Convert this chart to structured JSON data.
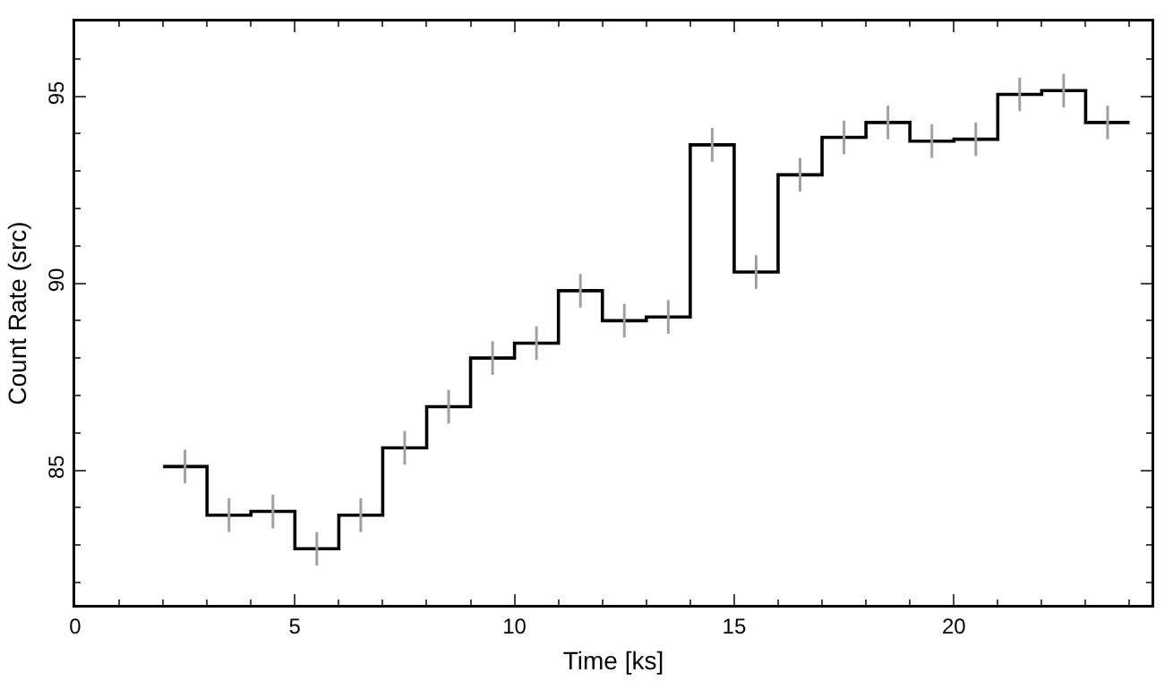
{
  "chart_data": {
    "type": "step",
    "xlabel": "Time [ks]",
    "ylabel": "Count Rate (src)",
    "x": [
      2,
      2.5,
      3.5,
      4.5,
      5.5,
      6.5,
      7.5,
      8.5,
      9.5,
      10.5,
      11.5,
      12.5,
      13.5,
      14.5,
      15.5,
      16.5,
      17.5,
      18.5,
      19.5,
      20.5,
      21.5,
      22.5,
      23.5,
      24
    ],
    "values": [
      85.1,
      85.1,
      83.8,
      83.9,
      82.9,
      83.8,
      85.6,
      86.7,
      88.0,
      88.4,
      89.8,
      89.0,
      89.1,
      93.7,
      90.3,
      92.9,
      93.9,
      94.3,
      93.8,
      93.85,
      95.05,
      95.15,
      94.3,
      94.3
    ],
    "errors": [
      null,
      0.45,
      0.45,
      0.45,
      0.45,
      0.45,
      0.45,
      0.45,
      0.45,
      0.45,
      0.45,
      0.45,
      0.45,
      0.45,
      0.45,
      0.45,
      0.45,
      0.45,
      0.45,
      0.45,
      0.45,
      0.45,
      0.45,
      null
    ],
    "color": "#000000",
    "xlim": [
      0,
      24.5
    ],
    "xticks": [
      0,
      5,
      10,
      15,
      20
    ],
    "ylim": [
      81.4,
      97
    ],
    "yticks": [
      85,
      90,
      95
    ],
    "grid": false
  }
}
